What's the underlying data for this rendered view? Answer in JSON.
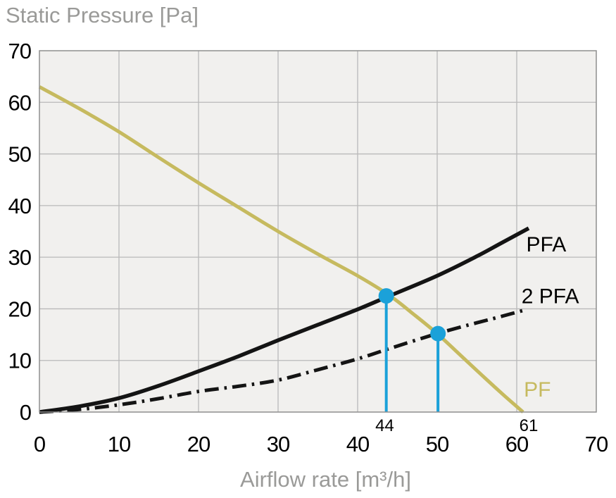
{
  "header": {
    "title": "Static Pressure [Pa]"
  },
  "axes": {
    "x_label": "Airflow rate [m³/h]"
  },
  "colors": {
    "page_bg": "#ffffff",
    "plot_bg": "#f1f0ee",
    "grid": "#b9b9b9",
    "border": "#8f8f8f",
    "text_gray": "#9a9a98",
    "text_black": "#000000",
    "curve_black": "#141414",
    "curve_pf": "#c6ba5f",
    "marker_blue": "#1ba1d9"
  },
  "chart_data": {
    "type": "line",
    "title": "Static Pressure [Pa]",
    "xlabel": "Airflow rate [m³/h]",
    "ylabel": "Static Pressure [Pa]",
    "xlim": [
      0,
      70
    ],
    "ylim": [
      0,
      70
    ],
    "x_ticks": [
      0,
      10,
      20,
      30,
      40,
      50,
      60,
      70
    ],
    "y_ticks": [
      0,
      10,
      20,
      30,
      40,
      50,
      60,
      70
    ],
    "grid": true,
    "legend_position": "inline-right",
    "series": [
      {
        "name": "PF",
        "style": "solid",
        "color": "#c6ba5f",
        "width": 5,
        "label_pos": {
          "x": 60.9,
          "y": 3.0
        },
        "points": [
          [
            0,
            63
          ],
          [
            5,
            58.8
          ],
          [
            10,
            54.3
          ],
          [
            15,
            49.3
          ],
          [
            20,
            44.4
          ],
          [
            25,
            39.7
          ],
          [
            30,
            35
          ],
          [
            35,
            30.6
          ],
          [
            40,
            26.4
          ],
          [
            44,
            22.6
          ],
          [
            47,
            19
          ],
          [
            50,
            15.2
          ],
          [
            53,
            10.9
          ],
          [
            56,
            6.6
          ],
          [
            58.5,
            3.1
          ],
          [
            60.8,
            0
          ]
        ]
      },
      {
        "name": "PFA",
        "style": "solid",
        "color": "#141414",
        "width": 5.5,
        "label_pos": {
          "x": 61.2,
          "y": 31.1
        },
        "points": [
          [
            0,
            0
          ],
          [
            5,
            1.1
          ],
          [
            10,
            2.7
          ],
          [
            15,
            5.1
          ],
          [
            20,
            7.9
          ],
          [
            25,
            10.8
          ],
          [
            30,
            13.9
          ],
          [
            35,
            16.9
          ],
          [
            40,
            19.9
          ],
          [
            44,
            22.5
          ],
          [
            50,
            26.4
          ],
          [
            55,
            30.2
          ],
          [
            58,
            32.7
          ],
          [
            61.5,
            35.6
          ]
        ]
      },
      {
        "name": "2 PFA",
        "style": "dashdot",
        "color": "#141414",
        "width": 5,
        "label_pos": {
          "x": 60.6,
          "y": 21.1
        },
        "points": [
          [
            0,
            0
          ],
          [
            5,
            0.5
          ],
          [
            10,
            1.4
          ],
          [
            15,
            2.6
          ],
          [
            20,
            4.0
          ],
          [
            25,
            5.0
          ],
          [
            30,
            6.2
          ],
          [
            35,
            8.2
          ],
          [
            40,
            10.3
          ],
          [
            44,
            12.3
          ],
          [
            50,
            15.2
          ],
          [
            55,
            17.3
          ],
          [
            58,
            18.5
          ],
          [
            61.3,
            19.9
          ]
        ]
      }
    ],
    "operating_points": [
      {
        "x": 43.6,
        "y": 22.5
      },
      {
        "x": 50.1,
        "y": 15.2
      }
    ],
    "axis_annotations": [
      {
        "text": "44",
        "x": 43.4
      },
      {
        "text": "61",
        "x": 61.5
      }
    ]
  }
}
